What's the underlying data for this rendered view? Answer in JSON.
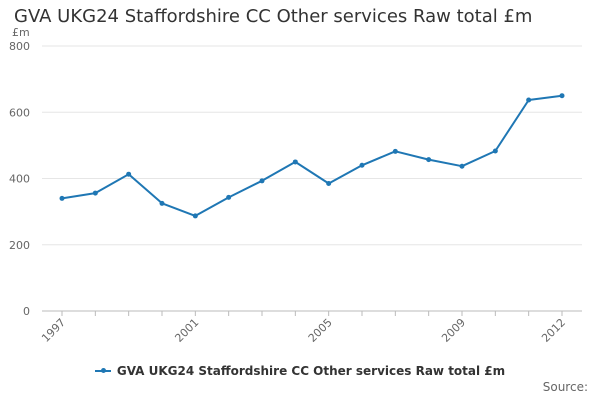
{
  "chart_data": {
    "type": "line",
    "title": "GVA UKG24 Staffordshire CC Other services Raw total £m",
    "unit_label": "£m",
    "xlabel": "",
    "ylabel": "",
    "x": [
      1997,
      1998,
      1999,
      2000,
      2001,
      2002,
      2003,
      2004,
      2005,
      2006,
      2007,
      2008,
      2009,
      2010,
      2011,
      2012
    ],
    "x_tick_labels": [
      "1997",
      "2001",
      "2005",
      "2009",
      "2012"
    ],
    "y_ticks": [
      0,
      200,
      400,
      600,
      800
    ],
    "ylim": [
      0,
      800
    ],
    "grid": true,
    "legend_position": "bottom",
    "series": [
      {
        "name": "GVA UKG24 Staffordshire CC Other services Raw total £m",
        "color": "#1f77b4",
        "values": [
          340,
          356,
          413,
          325,
          287,
          343,
          393,
          450,
          385,
          440,
          482,
          457,
          437,
          483,
          637,
          650
        ]
      }
    ],
    "source_label": "Source:"
  }
}
